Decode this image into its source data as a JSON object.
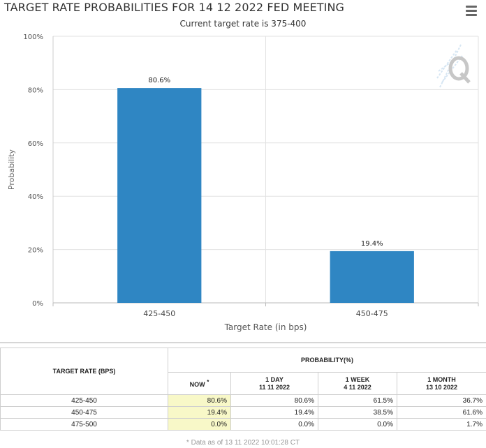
{
  "chart_data": {
    "type": "bar",
    "title": "TARGET RATE PROBABILITIES FOR 14 12 2022 FED MEETING",
    "subtitle": "Current target rate is 375-400",
    "xlabel": "Target Rate (in bps)",
    "ylabel": "Probability",
    "categories": [
      "425-450",
      "450-475"
    ],
    "values": [
      80.6,
      19.4
    ],
    "data_labels": [
      "80.6%",
      "19.4%"
    ],
    "ylim": [
      0,
      100
    ],
    "yticks": [
      0,
      20,
      40,
      60,
      80,
      100
    ],
    "ytick_labels": [
      "0%",
      "20%",
      "40%",
      "60%",
      "80%",
      "100%"
    ],
    "grid": true,
    "legend": "none",
    "bar_color": "#2f86c3"
  },
  "table": {
    "col_target": "TARGET RATE (BPS)",
    "col_probability": "PROBABILITY(%)",
    "sub_now": "NOW",
    "sub_now_mark": "*",
    "sub_day": "1 DAY",
    "sub_day_date": "11 11 2022",
    "sub_week": "1 WEEK",
    "sub_week_date": "4 11 2022",
    "sub_month": "1 MONTH",
    "sub_month_date": "13 10 2022",
    "rows": [
      {
        "rate": "425-450",
        "now": "80.6%",
        "day": "80.6%",
        "week": "61.5%",
        "month": "36.7%"
      },
      {
        "rate": "450-475",
        "now": "19.4%",
        "day": "19.4%",
        "week": "38.5%",
        "month": "61.6%"
      },
      {
        "rate": "475-500",
        "now": "0.0%",
        "day": "0.0%",
        "week": "0.0%",
        "month": "1.7%"
      }
    ],
    "now_highlight_color": "#f8f8c8"
  },
  "footnote": "* Data as of 13 11 2022 10:01:28 CT",
  "icons": {
    "menu": "hamburger-menu-icon",
    "watermark": "quikstrike-q-logo-icon"
  }
}
